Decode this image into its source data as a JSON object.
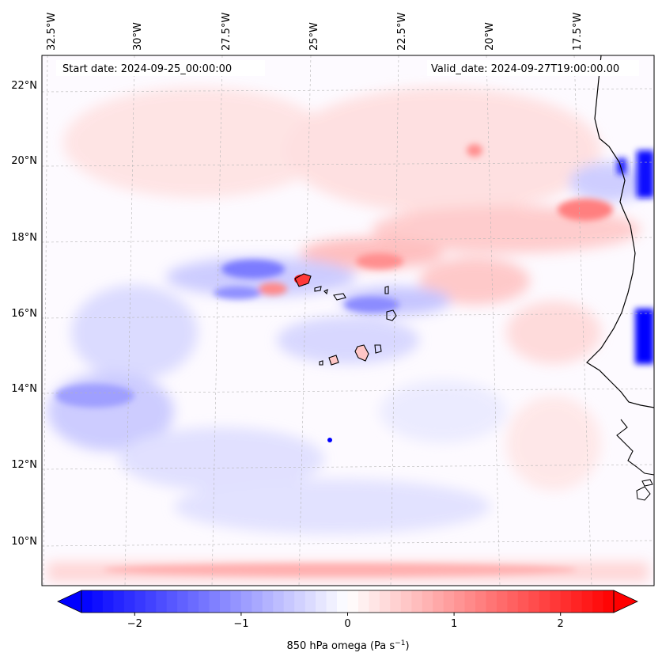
{
  "header": {
    "start_date": "Start date: 2024-09-25_00:00:00",
    "valid_date": "Valid_date: 2024-09-27T19:00:00.00"
  },
  "map": {
    "lon_labels": [
      "32.5°W",
      "30°W",
      "27.5°W",
      "25°W",
      "22.5°W",
      "20°W",
      "17.5°W"
    ],
    "lat_labels": [
      "22°N",
      "20°N",
      "18°N",
      "16°N",
      "14°N",
      "12°N",
      "10°N"
    ]
  },
  "colorbar": {
    "tick_labels": [
      "−2",
      "−1",
      "0",
      "1",
      "2"
    ],
    "tick_values": [
      -2,
      -1,
      0,
      1,
      2
    ],
    "range": [
      -2.5,
      2.5
    ],
    "label": "850 hPa omega (Pa s",
    "label_superscript": "−1",
    "label_suffix": ")",
    "colors": {
      "negative": "#0000ff",
      "zero": "#ffffff",
      "positive": "#ff0000"
    }
  }
}
